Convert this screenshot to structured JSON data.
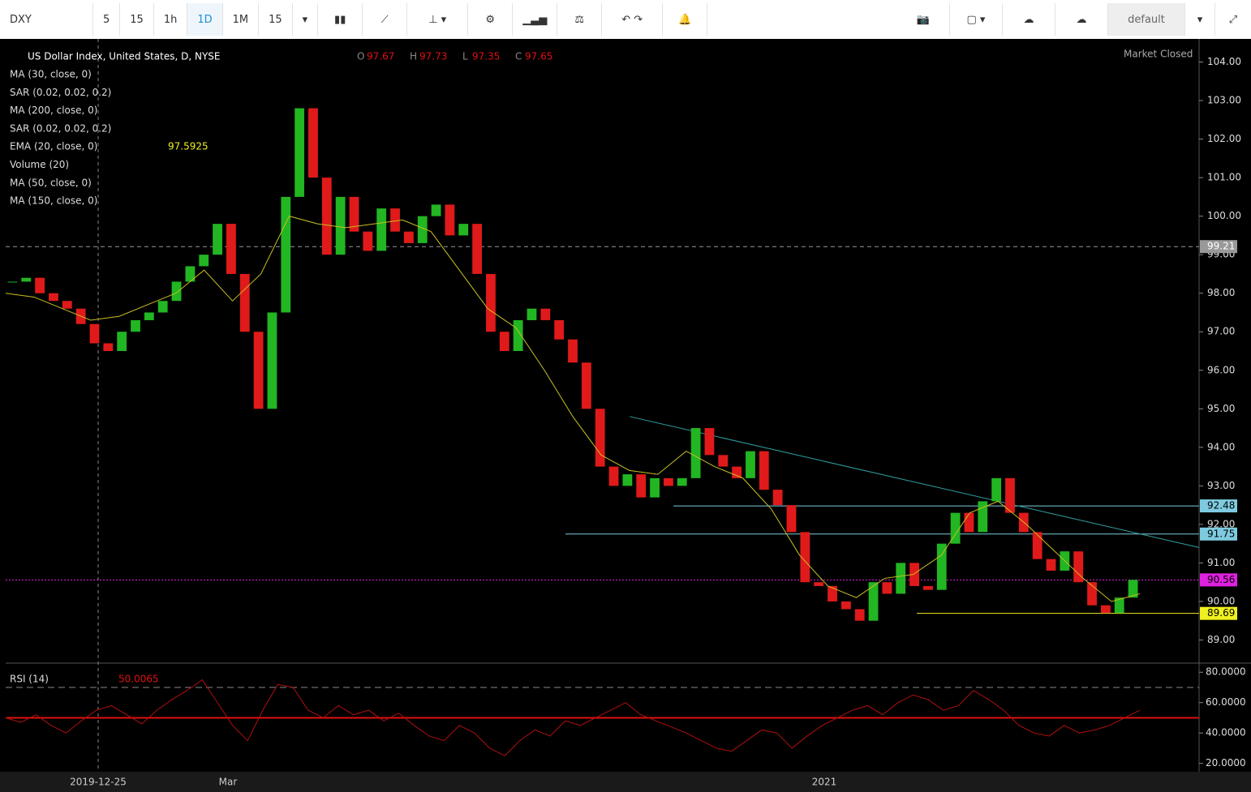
{
  "toolbar": {
    "symbol": "DXY",
    "intervals": [
      "5",
      "15",
      "1h",
      "1D",
      "1M",
      "15"
    ],
    "active_interval": 3,
    "layout": "default"
  },
  "chart_data": {
    "type": "candlestick",
    "title": "US Dollar Index, United States, D, NYSE",
    "ohlc": [
      {
        "label": "O",
        "value": 97.67
      },
      {
        "label": "H",
        "value": 97.73
      },
      {
        "label": "L",
        "value": 97.35
      },
      {
        "label": "C",
        "value": 97.65
      }
    ],
    "status": "Market Closed",
    "indicators": [
      "MA (30, close, 0)",
      "SAR (0.02, 0.02, 0.2)",
      "MA (200, close, 0)",
      "SAR (0.02, 0.02, 0.2)",
      "EMA (20, close, 0)",
      "Volume (20)",
      "MA (50, close, 0)",
      "MA (150, close, 0)"
    ],
    "ema_label_value": 97.5925,
    "closes": [
      98.3,
      98.4,
      98.0,
      97.8,
      97.6,
      97.2,
      96.7,
      96.5,
      97.0,
      97.3,
      97.5,
      97.8,
      98.3,
      98.7,
      99.0,
      99.8,
      98.5,
      97.0,
      95.0,
      97.5,
      100.5,
      102.8,
      101.0,
      99.0,
      100.5,
      99.6,
      99.1,
      100.2,
      99.6,
      99.3,
      100.0,
      100.3,
      99.5,
      99.8,
      98.5,
      97.0,
      96.5,
      97.3,
      97.6,
      97.3,
      96.8,
      96.2,
      95.0,
      93.5,
      93.0,
      93.3,
      92.7,
      93.2,
      93.0,
      93.2,
      94.5,
      93.8,
      93.5,
      93.2,
      93.9,
      92.9,
      92.5,
      91.8,
      90.5,
      90.4,
      90.0,
      89.8,
      89.5,
      90.5,
      90.2,
      91.0,
      90.4,
      90.3,
      91.5,
      92.3,
      91.8,
      92.6,
      93.2,
      92.3,
      91.8,
      91.1,
      90.8,
      91.3,
      90.5,
      89.9,
      89.7,
      90.1,
      90.56
    ],
    "ema": {
      "color": "#c8c020",
      "values": [
        98.0,
        97.9,
        97.6,
        97.3,
        97.4,
        97.7,
        98.0,
        98.6,
        97.8,
        98.5,
        100.0,
        99.8,
        99.7,
        99.8,
        99.9,
        99.6,
        98.6,
        97.6,
        97.1,
        96.0,
        94.8,
        93.8,
        93.4,
        93.3,
        93.9,
        93.5,
        93.2,
        92.4,
        91.2,
        90.4,
        90.1,
        90.6,
        90.7,
        91.2,
        92.3,
        92.6,
        92.0,
        91.3,
        90.6,
        90.0,
        90.2
      ]
    },
    "up_color": "#22b622",
    "down_color": "#e01a1a",
    "price_lines": [
      {
        "value": 99.21,
        "color": "#999999",
        "style": "dashed"
      },
      {
        "value": 92.48,
        "color": "#7ecbe0",
        "style": "solid"
      },
      {
        "value": 91.75,
        "color": "#7ecbe0",
        "style": "solid"
      },
      {
        "value": 90.56,
        "color": "#e020e0",
        "style": "dotted"
      },
      {
        "value": 89.69,
        "color": "#f0f020",
        "style": "solid"
      }
    ],
    "trendline": {
      "color": "#30a0a0",
      "values": [
        94.8,
        91.4
      ]
    },
    "ylim": [
      88.4,
      104.6
    ],
    "yticks": [
      {
        "value": 89,
        "label": "89.00"
      },
      {
        "value": 90,
        "label": "90.00"
      },
      {
        "value": 91,
        "label": "91.00"
      },
      {
        "value": 92,
        "label": "92.00"
      },
      {
        "value": 93,
        "label": "93.00"
      },
      {
        "value": 94,
        "label": "94.00"
      },
      {
        "value": 95,
        "label": "95.00"
      },
      {
        "value": 96,
        "label": "96.00"
      },
      {
        "value": 97,
        "label": "97.00"
      },
      {
        "value": 98,
        "label": "98.00"
      },
      {
        "value": 99,
        "label": "99.00"
      },
      {
        "value": 100,
        "label": "100.00"
      },
      {
        "value": 101,
        "label": "101.00"
      },
      {
        "value": 102,
        "label": "102.00"
      },
      {
        "value": 103,
        "label": "103.00"
      },
      {
        "value": 104,
        "label": "104.00"
      }
    ],
    "x_labels": [
      "2019-12-25",
      "Mar",
      "2021"
    ],
    "rsi": {
      "name": "RSI (14)",
      "value": 50.0065,
      "color": "#b01010",
      "values": [
        50,
        47,
        52,
        45,
        40,
        48,
        55,
        58,
        52,
        46,
        55,
        62,
        68,
        75,
        60,
        45,
        35,
        55,
        72,
        70,
        55,
        50,
        58,
        52,
        55,
        48,
        53,
        45,
        38,
        35,
        45,
        40,
        30,
        25,
        35,
        42,
        38,
        48,
        45,
        50,
        55,
        60,
        52,
        48,
        44,
        40,
        35,
        30,
        28,
        35,
        42,
        40,
        30,
        38,
        45,
        50,
        55,
        58,
        52,
        60,
        65,
        62,
        55,
        58,
        68,
        62,
        55,
        45,
        40,
        38,
        45,
        40,
        42,
        45,
        50,
        55
      ],
      "levels": [
        70,
        50
      ],
      "ylim": [
        14.5,
        86
      ],
      "yticks": [
        {
          "value": 20,
          "label": "20.0000"
        },
        {
          "value": 40,
          "label": "40.0000"
        },
        {
          "value": 60,
          "label": "60.0000"
        },
        {
          "value": 80,
          "label": "80.0000"
        }
      ]
    }
  }
}
